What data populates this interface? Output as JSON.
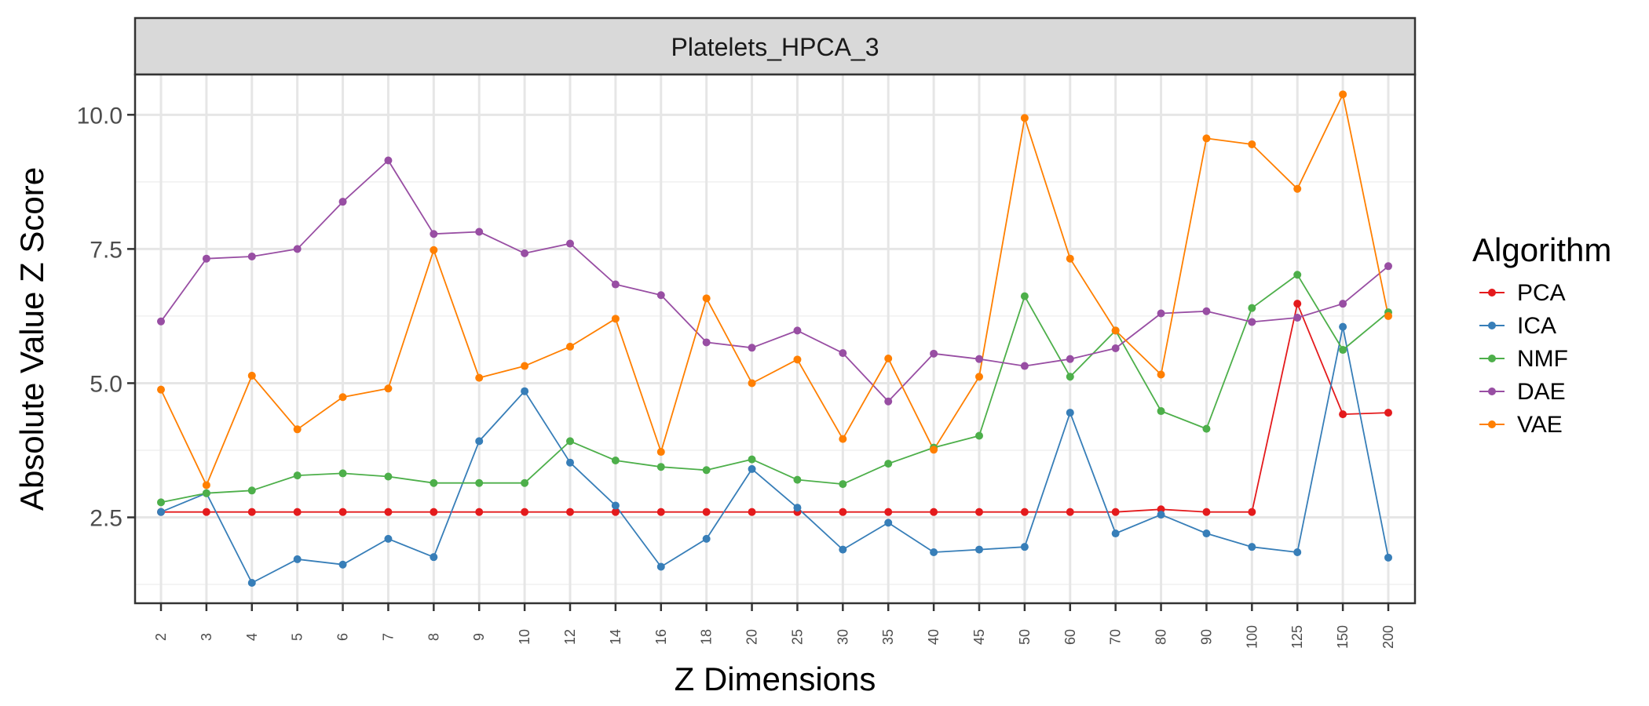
{
  "chart_data": {
    "type": "line",
    "facet_title": "Platelets_HPCA_3",
    "xlabel": "Z Dimensions",
    "ylabel": "Absolute Value Z Score",
    "categories": [
      "2",
      "3",
      "4",
      "5",
      "6",
      "7",
      "8",
      "9",
      "10",
      "12",
      "14",
      "16",
      "18",
      "20",
      "25",
      "30",
      "35",
      "40",
      "45",
      "50",
      "60",
      "70",
      "80",
      "90",
      "100",
      "125",
      "150",
      "200"
    ],
    "ylim": [
      0.9,
      10.75
    ],
    "yticks": [
      2.5,
      5.0,
      7.5,
      10.0
    ],
    "ytick_labels": [
      "2.5",
      "5.0",
      "7.5",
      "10.0"
    ],
    "grid": true,
    "legend_title": "Algorithm",
    "legend_position": "right",
    "series": [
      {
        "name": "PCA",
        "color": "#e41a1c",
        "values": [
          2.6,
          2.6,
          2.6,
          2.6,
          2.6,
          2.6,
          2.6,
          2.6,
          2.6,
          2.6,
          2.6,
          2.6,
          2.6,
          2.6,
          2.6,
          2.6,
          2.6,
          2.6,
          2.6,
          2.6,
          2.6,
          2.6,
          2.65,
          2.6,
          2.6,
          6.48,
          4.42,
          4.45
        ]
      },
      {
        "name": "ICA",
        "color": "#377eb8",
        "values": [
          2.6,
          2.95,
          1.28,
          1.72,
          1.62,
          2.1,
          1.76,
          3.92,
          4.85,
          3.52,
          2.72,
          1.58,
          2.1,
          3.4,
          2.68,
          1.9,
          2.4,
          1.85,
          1.9,
          1.95,
          4.45,
          2.2,
          2.55,
          2.2,
          1.95,
          1.85,
          6.05,
          1.75
        ]
      },
      {
        "name": "NMF",
        "color": "#4daf4a",
        "values": [
          2.78,
          2.95,
          3.0,
          3.28,
          3.32,
          3.26,
          3.14,
          3.14,
          3.14,
          3.92,
          3.56,
          3.44,
          3.38,
          3.58,
          3.2,
          3.12,
          3.5,
          3.8,
          4.02,
          6.62,
          5.12,
          5.98,
          4.48,
          4.15,
          6.4,
          7.02,
          5.62,
          6.32
        ]
      },
      {
        "name": "DAE",
        "color": "#984ea3",
        "values": [
          6.15,
          7.32,
          7.36,
          7.5,
          8.38,
          9.15,
          7.78,
          7.82,
          7.42,
          7.6,
          6.84,
          6.64,
          5.76,
          5.66,
          5.98,
          5.56,
          4.66,
          5.55,
          5.45,
          5.32,
          5.45,
          5.65,
          6.3,
          6.34,
          6.14,
          6.22,
          6.48,
          7.18
        ]
      },
      {
        "name": "VAE",
        "color": "#ff7f00",
        "values": [
          4.88,
          3.1,
          5.14,
          4.14,
          4.74,
          4.9,
          7.48,
          5.1,
          5.32,
          5.68,
          6.2,
          3.72,
          6.58,
          5.0,
          5.44,
          3.96,
          5.46,
          3.76,
          5.12,
          9.94,
          7.32,
          5.98,
          5.16,
          9.56,
          9.45,
          8.62,
          10.38,
          6.25
        ]
      }
    ]
  }
}
